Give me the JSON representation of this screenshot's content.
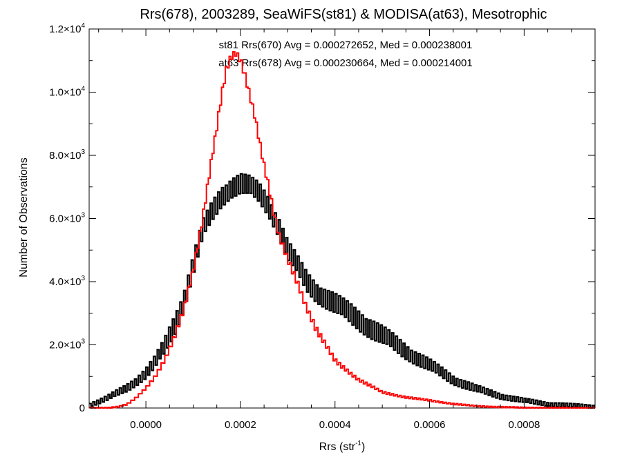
{
  "chart_data": {
    "type": "histogram",
    "title": "Rrs(678), 2003289, SeaWiFS(st81) & MODISA(at63), Mesotrophic",
    "xlabel": {
      "base": "Rrs (str",
      "sup": "-1",
      "close": ")"
    },
    "ylabel": "Number of Observations",
    "xlim": [
      -0.00012,
      0.00095
    ],
    "ylim": [
      0,
      12000
    ],
    "x_ticks": [
      {
        "value": 0.0,
        "label": "0.0000"
      },
      {
        "value": 0.0002,
        "label": "0.0002"
      },
      {
        "value": 0.0004,
        "label": "0.0004"
      },
      {
        "value": 0.0006,
        "label": "0.0006"
      },
      {
        "value": 0.0008,
        "label": "0.0008"
      }
    ],
    "y_ticks": [
      {
        "value": 0,
        "label": "0",
        "mant": "",
        "exp": ""
      },
      {
        "value": 2000,
        "label": "2.0×10^3",
        "mant": "2.0",
        "exp": "3"
      },
      {
        "value": 4000,
        "label": "4.0×10^3",
        "mant": "4.0",
        "exp": "3"
      },
      {
        "value": 6000,
        "label": "6.0×10^3",
        "mant": "6.0",
        "exp": "3"
      },
      {
        "value": 8000,
        "label": "8.0×10^3",
        "mant": "8.0",
        "exp": "3"
      },
      {
        "value": 10000,
        "label": "1.0×10^4",
        "mant": "1.0",
        "exp": "4"
      },
      {
        "value": 12000,
        "label": "1.2×10^4",
        "mant": "1.2",
        "exp": "4"
      }
    ],
    "annotations": [
      {
        "text": "st81 Rrs(670) Avg = 0.000272652, Med = 0.000238001",
        "color": "#000000"
      },
      {
        "text": "at63 Rrs(678) Avg = 0.000230664, Med = 0.000214001",
        "color": "#ff0000"
      }
    ],
    "series": [
      {
        "name": "st81",
        "color": "#000000",
        "x": [
          -0.00012,
          -0.0001,
          -8e-05,
          -6e-05,
          -4e-05,
          -2e-05,
          0.0,
          2e-05,
          4e-05,
          6e-05,
          8e-05,
          0.0001,
          0.00012,
          0.00014,
          0.00016,
          0.00018,
          0.0002,
          0.00022,
          0.00024,
          0.00026,
          0.00028,
          0.0003,
          0.00032,
          0.00034,
          0.00036,
          0.0004,
          0.00045,
          0.0005,
          0.00055,
          0.0006,
          0.00065,
          0.0007,
          0.00075,
          0.0008,
          0.00085,
          0.0009,
          0.00095
        ],
        "y": [
          100,
          200,
          320,
          480,
          640,
          860,
          1100,
          1450,
          1950,
          2600,
          3400,
          4500,
          5600,
          6200,
          6700,
          7000,
          7100,
          7000,
          6800,
          6400,
          5800,
          5000,
          4500,
          4000,
          3700,
          3300,
          2800,
          2300,
          1800,
          1350,
          900,
          600,
          380,
          230,
          130,
          80,
          40
        ],
        "jitter": 360
      },
      {
        "name": "at63",
        "color": "#ff0000",
        "x": [
          -0.00012,
          -0.0001,
          -8e-05,
          -6e-05,
          -4e-05,
          -2e-05,
          0.0,
          2e-05,
          4e-05,
          6e-05,
          8e-05,
          0.0001,
          0.00012,
          0.00014,
          0.00015,
          0.00016,
          0.00017,
          0.00018,
          0.00019,
          0.0002,
          0.00021,
          0.00022,
          0.00023,
          0.00024,
          0.00025,
          0.00026,
          0.00027,
          0.00028,
          0.0003,
          0.00032,
          0.00034,
          0.00036,
          0.0004,
          0.00045,
          0.0005,
          0.00055,
          0.0006,
          0.00065,
          0.0007,
          0.00075,
          0.0008,
          0.0009,
          0.00095
        ],
        "y": [
          0,
          0,
          0,
          40,
          120,
          330,
          620,
          1000,
          1550,
          2250,
          3100,
          4300,
          6000,
          8000,
          8900,
          9900,
          10700,
          11100,
          11200,
          11000,
          10500,
          9900,
          9300,
          8500,
          7700,
          7000,
          6200,
          5500,
          4700,
          4000,
          3200,
          2500,
          1500,
          900,
          500,
          340,
          240,
          130,
          60,
          30,
          10,
          0,
          0
        ],
        "jitter": 120
      }
    ]
  }
}
